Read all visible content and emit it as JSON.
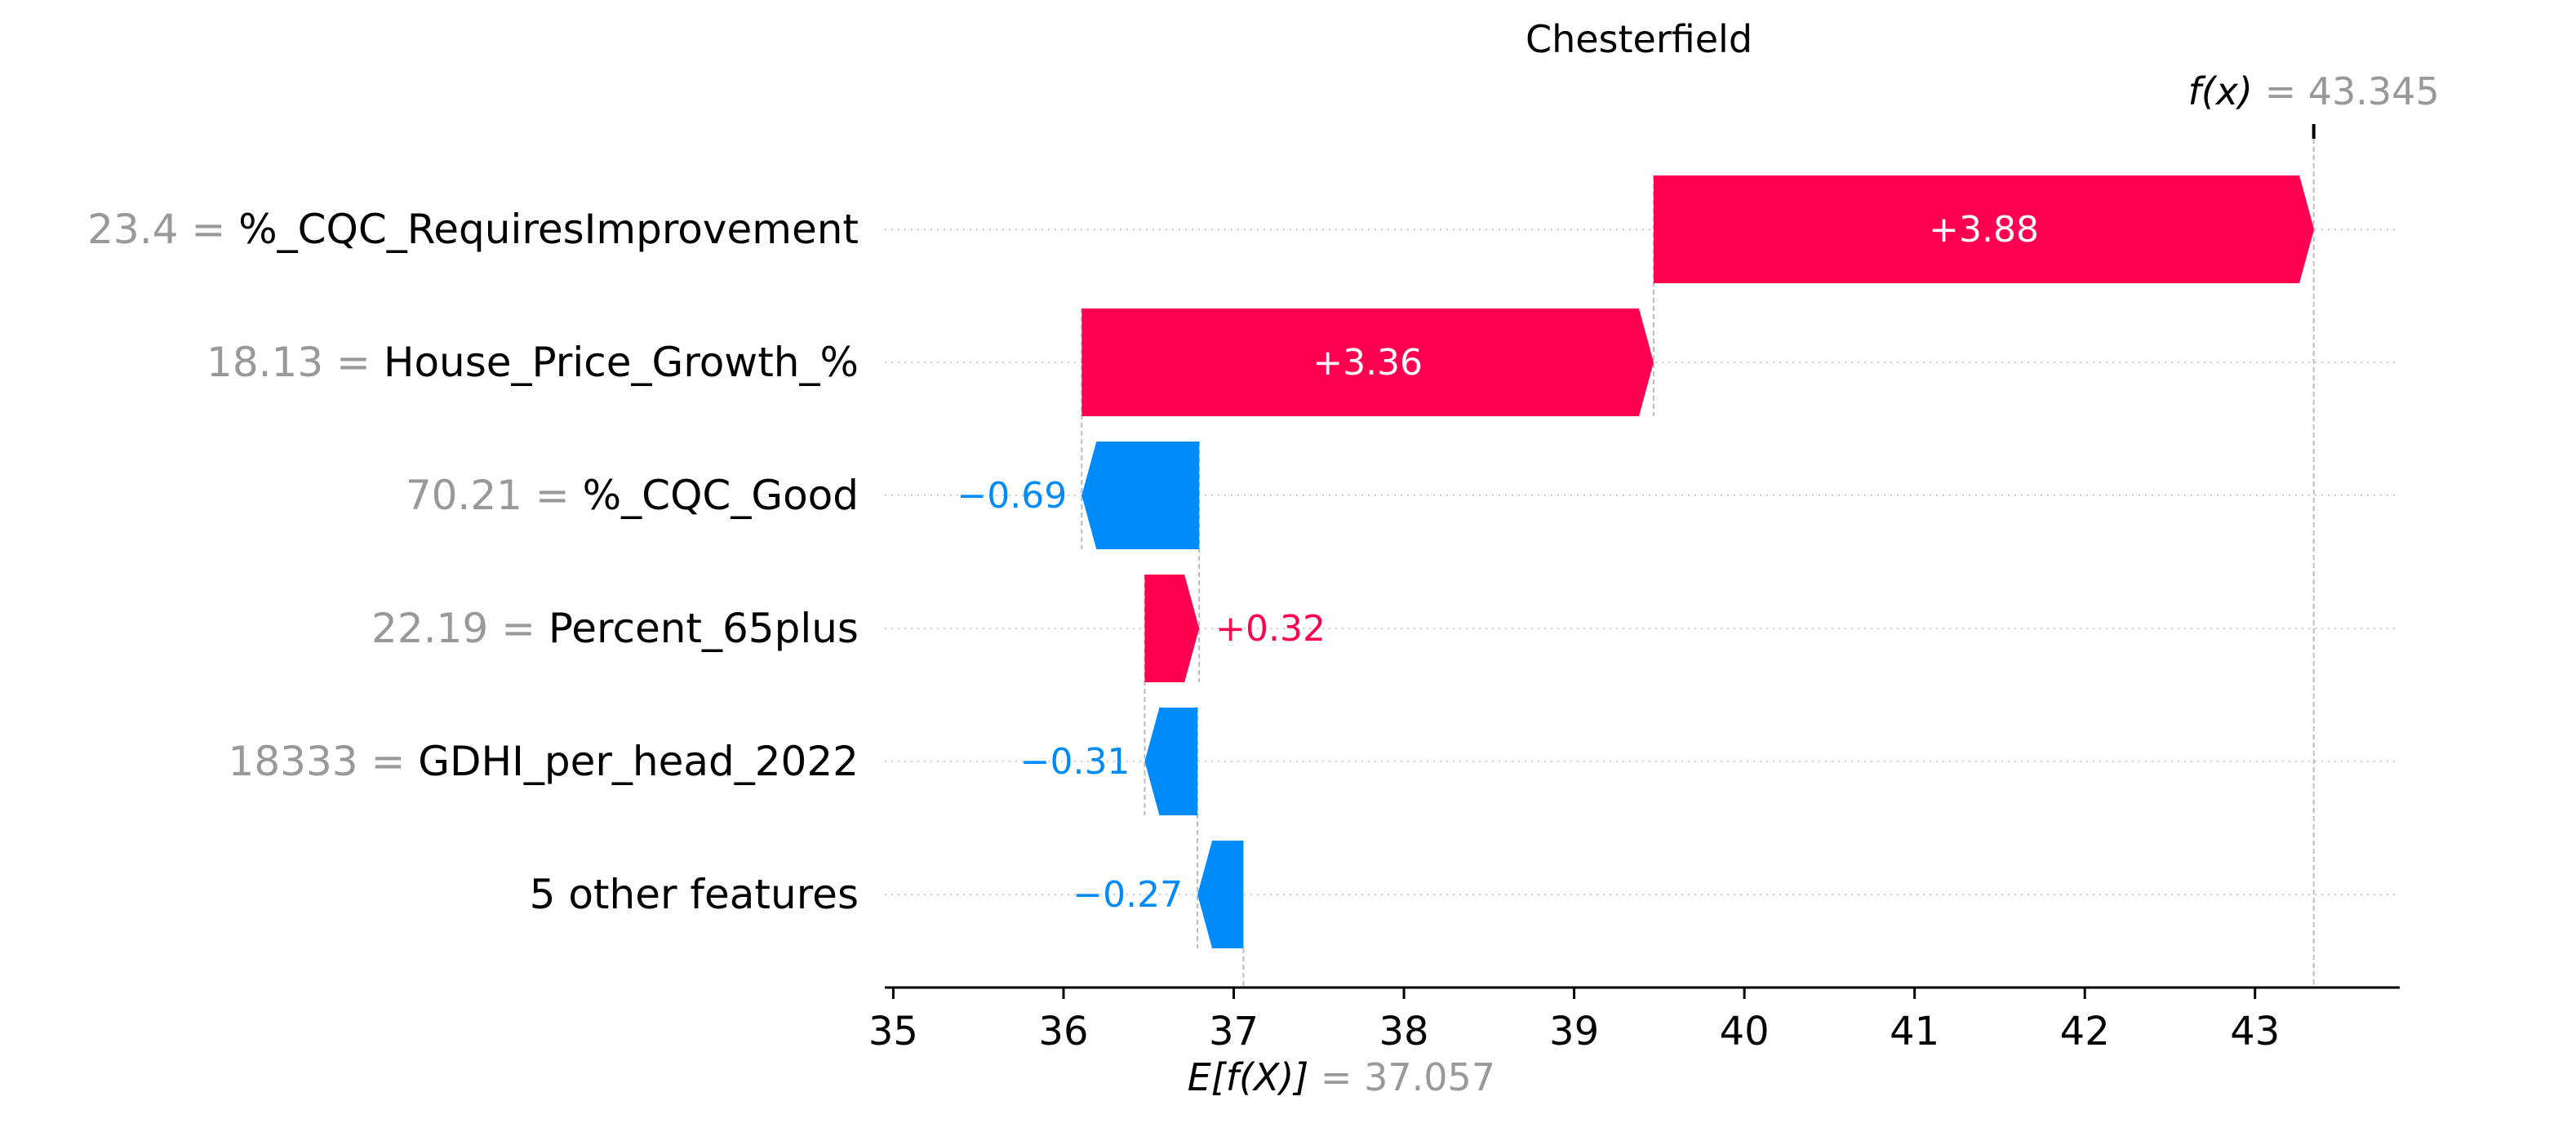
{
  "chart_data": {
    "type": "waterfall",
    "title": "Chesterfield",
    "base_value": 37.057,
    "base_value_label": "= 37.057",
    "base_value_symbol": "E[f(X)]",
    "output_value": 43.345,
    "output_value_label": "= 43.345",
    "output_value_symbol": "f(x)",
    "xlim": [
      34.95,
      43.85
    ],
    "xticks": [
      35,
      36,
      37,
      38,
      39,
      40,
      41,
      42,
      43
    ],
    "grid": "horizontal dotted guides per row",
    "colors": {
      "positive": "#ff0051",
      "negative": "#008bfb"
    },
    "features": [
      {
        "value": "23.4 =",
        "name": "%_CQC_RequiresImprovement",
        "shap": 3.88,
        "label": "+3.88"
      },
      {
        "value": "18.13 =",
        "name": "House_Price_Growth_%",
        "shap": 3.36,
        "label": "+3.36"
      },
      {
        "value": "70.21 =",
        "name": "%_CQC_Good",
        "shap": -0.69,
        "label": "−0.69"
      },
      {
        "value": "22.19 =",
        "name": "Percent_65plus",
        "shap": 0.32,
        "label": "+0.32"
      },
      {
        "value": "18333 =",
        "name": "GDHI_per_head_2022",
        "shap": -0.31,
        "label": "−0.31"
      },
      {
        "value": "",
        "name": "5 other features",
        "shap": -0.27,
        "label": "−0.27"
      }
    ]
  }
}
